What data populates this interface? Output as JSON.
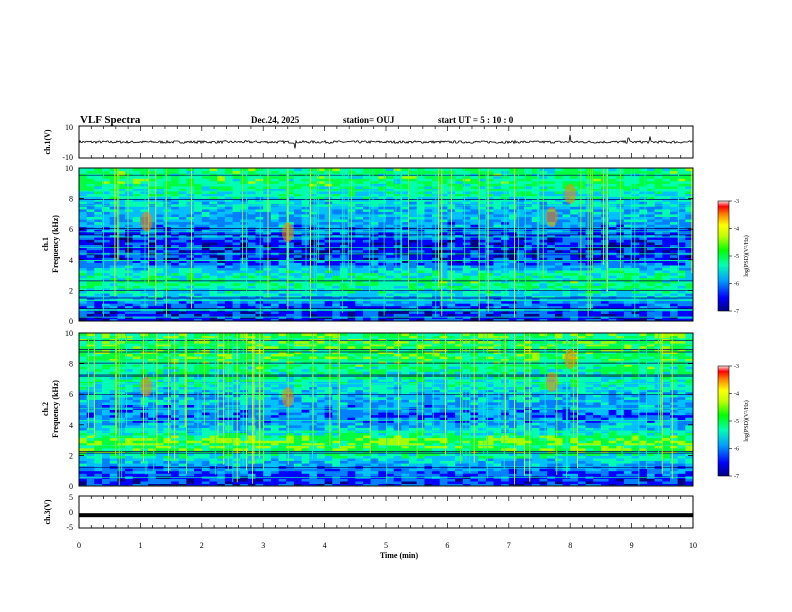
{
  "header": {
    "title": "VLF Spectra",
    "date": "Dec.24, 2025",
    "station": "station= OUJ",
    "start": "start  UT  =   5  : 10 : 0"
  },
  "chart_data": [
    {
      "type": "line",
      "name": "ch1-waveform",
      "ylabel": "ch.1(V)",
      "ylim": [
        -10,
        10
      ],
      "yticks": [
        "10",
        "-10"
      ],
      "baseline": 0,
      "spikes": [
        {
          "t": 3.52,
          "v": -4
        },
        {
          "t": 8.0,
          "v": 4.5
        },
        {
          "t": 9.3,
          "v": 3.5
        },
        {
          "t": 8.95,
          "v": 2.5
        }
      ]
    },
    {
      "type": "heatmap",
      "name": "ch1-spectrogram",
      "ylabel": "ch.1\nFrequency  (kHz)",
      "xlim": [
        0,
        10
      ],
      "ylim": [
        0,
        10
      ],
      "yticks": [
        "0",
        "2",
        "4",
        "6",
        "8",
        "10"
      ],
      "colorbar": {
        "label": "log(PSD)(V²/Hz)",
        "range": [
          -7,
          -3
        ],
        "ticks": [
          "-3",
          "-4",
          "-5",
          "-6",
          "-7"
        ]
      },
      "bands": [
        {
          "f": 0.4,
          "level": -6.6
        },
        {
          "f": 1.2,
          "level": -6.2
        },
        {
          "f": 2.0,
          "level": -5.4
        },
        {
          "f": 2.6,
          "level": -5.2
        },
        {
          "f": 3.2,
          "level": -5.5
        },
        {
          "f": 4.0,
          "level": -6.5
        },
        {
          "f": 5.0,
          "level": -6.6
        },
        {
          "f": 6.2,
          "level": -6.0
        },
        {
          "f": 7.5,
          "level": -5.8
        },
        {
          "f": 9.0,
          "level": -5.2
        }
      ]
    },
    {
      "type": "heatmap",
      "name": "ch2-spectrogram",
      "ylabel": "ch.2\nFrequency  (kHz)",
      "xlim": [
        0,
        10
      ],
      "ylim": [
        0,
        10
      ],
      "yticks": [
        "0",
        "2",
        "4",
        "6",
        "8",
        "10"
      ],
      "colorbar": {
        "label": "log(PSD)(V²/Hz)",
        "range": [
          -7,
          -3
        ],
        "ticks": [
          "-3",
          "-4",
          "-5",
          "-6",
          "-7"
        ]
      },
      "bands": [
        {
          "f": 0.4,
          "level": -6.5
        },
        {
          "f": 1.5,
          "level": -5.9
        },
        {
          "f": 2.4,
          "level": -5.0
        },
        {
          "f": 3.0,
          "level": -4.8
        },
        {
          "f": 3.6,
          "level": -5.6
        },
        {
          "f": 4.5,
          "level": -6.2
        },
        {
          "f": 5.6,
          "level": -5.9
        },
        {
          "f": 7.0,
          "level": -5.4
        },
        {
          "f": 8.8,
          "level": -5.0
        }
      ]
    },
    {
      "type": "line",
      "name": "ch3-waveform",
      "ylabel": "ch.3(V)",
      "ylim": [
        -5,
        5
      ],
      "yticks": [
        "5",
        "0",
        "-5"
      ],
      "baseline": -1,
      "xlabel": "Time  (min)",
      "xticks": [
        "0",
        "1",
        "2",
        "3",
        "4",
        "5",
        "6",
        "7",
        "8",
        "9",
        "10"
      ],
      "xlim": [
        0,
        10
      ]
    }
  ],
  "colors": {
    "cmap": [
      "#000080",
      "#0000ff",
      "#0080ff",
      "#00c0ff",
      "#00ffb0",
      "#00ff40",
      "#a0ff00",
      "#ffff00",
      "#ff8000",
      "#ff0000",
      "#800000"
    ]
  }
}
